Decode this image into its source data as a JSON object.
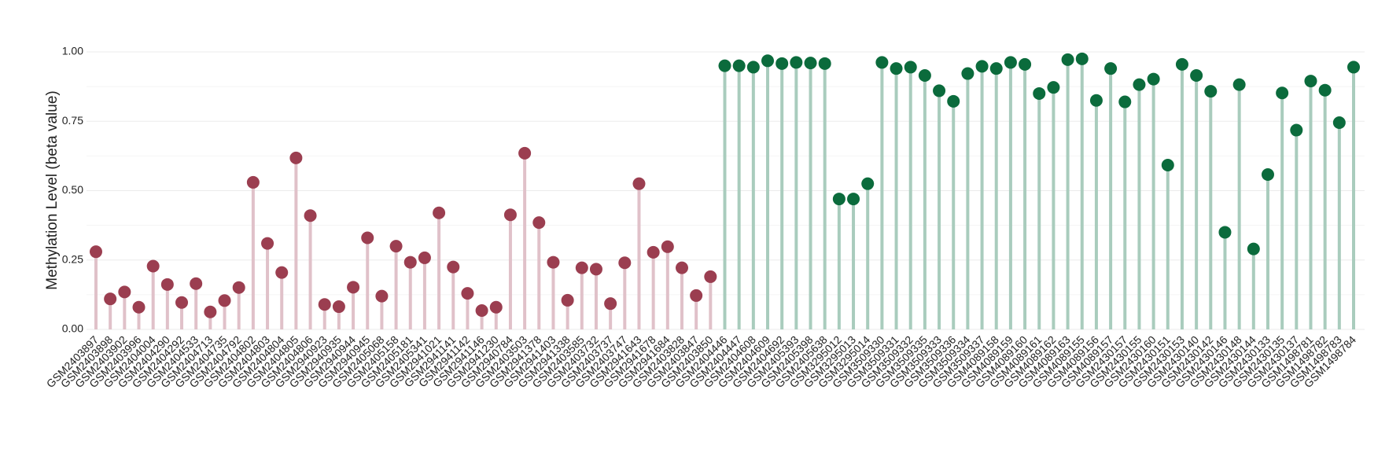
{
  "chart_data": {
    "type": "lollipop",
    "y_label": "Methylation Level (beta value)",
    "ylim": [
      0,
      1
    ],
    "yticks": [
      {
        "value": 0,
        "label": "0.00"
      },
      {
        "value": 0.25,
        "label": "0.25"
      },
      {
        "value": 0.5,
        "label": "0.50"
      },
      {
        "value": 0.75,
        "label": "0.75"
      },
      {
        "value": 1,
        "label": "1.00"
      }
    ],
    "grid": true,
    "series": [
      {
        "color": "#9b3e50",
        "stem_color": "#e0c1c9",
        "categories": [
          "GSM2403897",
          "GSM2403898",
          "GSM2403902",
          "GSM2403996",
          "GSM2404004",
          "GSM2404290",
          "GSM2404292",
          "GSM2404533",
          "GSM2404713",
          "GSM2404735",
          "GSM2404792",
          "GSM2404802",
          "GSM2404803",
          "GSM2404804",
          "GSM2404805",
          "GSM2404806",
          "GSM2940923",
          "GSM2940935",
          "GSM2940944",
          "GSM2940945",
          "GSM2405068",
          "GSM2405158",
          "GSM2405181",
          "GSM2405341",
          "GSM2941021",
          "GSM2941141",
          "GSM2941142",
          "GSM2941146",
          "GSM2941230",
          "GSM2940784",
          "GSM2403503",
          "GSM2941378",
          "GSM2941403",
          "GSM2941338",
          "GSM2403585",
          "GSM2403732",
          "GSM2403737",
          "GSM2403747",
          "GSM2941643",
          "GSM2941678",
          "GSM2941684",
          "GSM2403828",
          "GSM2403847",
          "GSM2403850"
        ],
        "values": [
          0.28,
          0.11,
          0.135,
          0.08,
          0.228,
          0.162,
          0.097,
          0.165,
          0.063,
          0.104,
          0.151,
          0.53,
          0.31,
          0.205,
          0.618,
          0.41,
          0.09,
          0.082,
          0.152,
          0.33,
          0.12,
          0.3,
          0.242,
          0.258,
          0.42,
          0.225,
          0.13,
          0.068,
          0.08,
          0.413,
          0.635,
          0.385,
          0.242,
          0.105,
          0.222,
          0.217,
          0.093,
          0.24,
          0.525,
          0.278,
          0.298,
          0.222,
          0.122,
          0.19
        ]
      },
      {
        "color": "#0b6b3c",
        "stem_color": "#a9ccbd",
        "categories": [
          "GSM2404446",
          "GSM2404447",
          "GSM2404608",
          "GSM2404609",
          "GSM2404692",
          "GSM2405393",
          "GSM2405398",
          "GSM2405638",
          "GSM3295012",
          "GSM3295013",
          "GSM3295014",
          "GSM3509330",
          "GSM3509331",
          "GSM3509332",
          "GSM3509335",
          "GSM3509333",
          "GSM3509336",
          "GSM3509334",
          "GSM3509337",
          "GSM4089158",
          "GSM4089159",
          "GSM4089160",
          "GSM4089161",
          "GSM4089162",
          "GSM4089163",
          "GSM4089155",
          "GSM4089156",
          "GSM4089157",
          "GSM2430157",
          "GSM2430155",
          "GSM2430160",
          "GSM2430151",
          "GSM2430153",
          "GSM2430140",
          "GSM2430142",
          "GSM2430146",
          "GSM2430148",
          "GSM2430144",
          "GSM2430133",
          "GSM2430135",
          "GSM2430137",
          "GSM1498781",
          "GSM1498782",
          "GSM1498783",
          "GSM1498784"
        ],
        "values": [
          0.95,
          0.95,
          0.945,
          0.968,
          0.958,
          0.962,
          0.96,
          0.958,
          0.47,
          0.47,
          0.525,
          0.962,
          0.94,
          0.945,
          0.915,
          0.86,
          0.822,
          0.922,
          0.948,
          0.94,
          0.962,
          0.955,
          0.85,
          0.872,
          0.972,
          0.975,
          0.825,
          0.94,
          0.82,
          0.882,
          0.902,
          0.592,
          0.955,
          0.915,
          0.858,
          0.35,
          0.882,
          0.29,
          0.558,
          0.852,
          0.718,
          0.895,
          0.862,
          0.745,
          0.945
        ]
      }
    ]
  }
}
